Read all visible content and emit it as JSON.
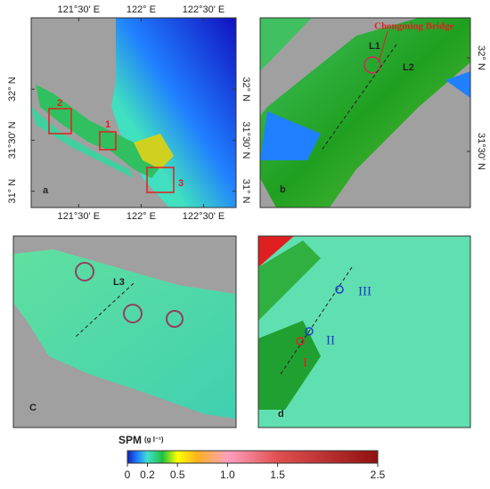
{
  "figure": {
    "panel_a": {
      "label": "a",
      "xlim": [
        121.12,
        122.76
      ],
      "ylim": [
        30.84,
        32.7
      ],
      "xticks": [
        {
          "value": 121.5,
          "label": "121°30' E"
        },
        {
          "value": 122,
          "label": "122° E"
        },
        {
          "value": 122.5,
          "label": "122°30' E"
        }
      ],
      "yticks": [
        {
          "value": 32,
          "label": "32° N"
        },
        {
          "value": 31.5,
          "label": "31°30' N"
        },
        {
          "value": 31,
          "label": "31° N"
        }
      ],
      "boxes": [
        "1",
        "2",
        "3"
      ]
    },
    "panel_b": {
      "label": "b",
      "ylim": [
        31.2,
        32.214
      ],
      "yticks": [
        {
          "value": 32,
          "label": "32° N"
        },
        {
          "value": 31.5,
          "label": "31°30' N"
        }
      ],
      "bridge": "Chongming Bridge",
      "lines": [
        "L1",
        "L2"
      ]
    },
    "panel_c": {
      "label": "C",
      "lines": [
        "L3"
      ]
    },
    "panel_d": {
      "label": "d",
      "stations": [
        "I",
        "II",
        "III"
      ]
    },
    "colorbar": {
      "label": "SPM",
      "unit": "(g l⁻¹)",
      "lim": [
        0,
        2.5
      ],
      "ticks": [
        0,
        0.2,
        0.5,
        {
          "value": 1,
          "label": "1.0"
        },
        1.5,
        2.5
      ]
    }
  }
}
